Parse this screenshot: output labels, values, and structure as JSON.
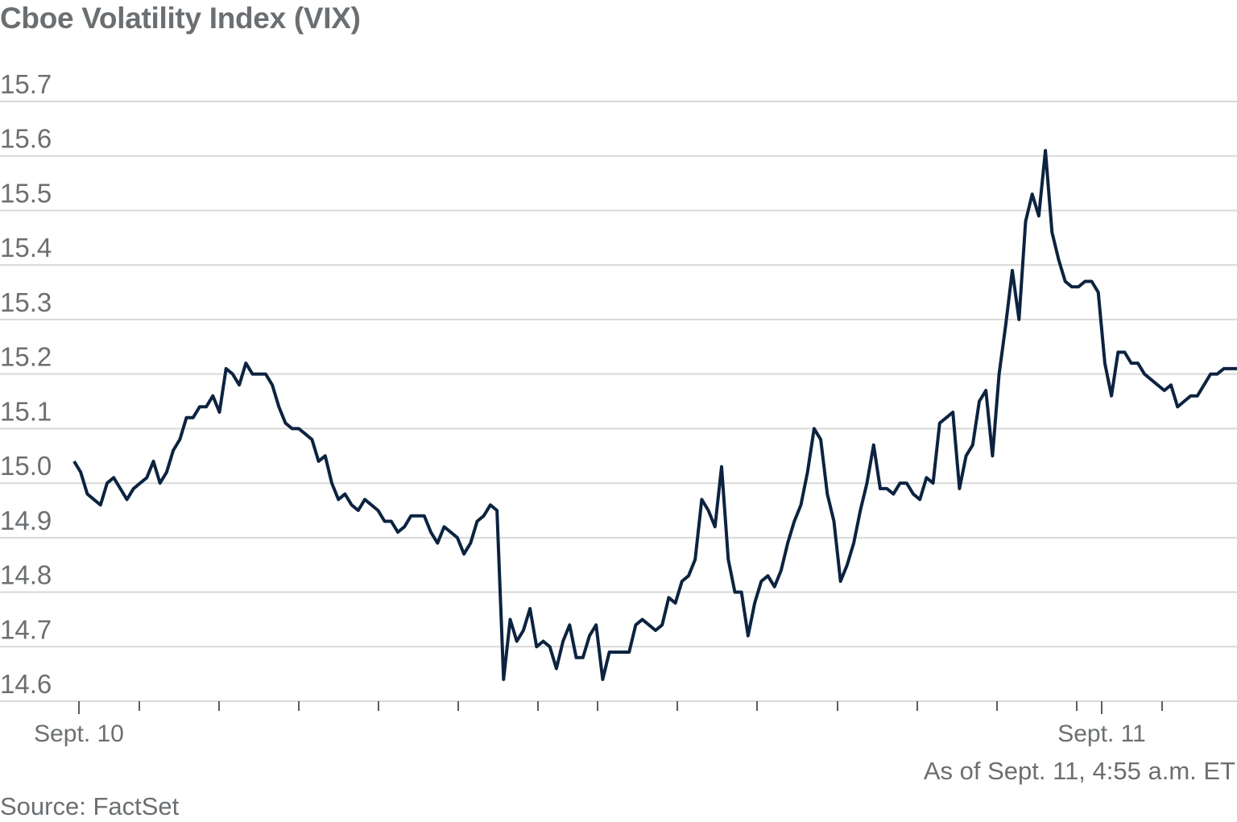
{
  "chart_data": {
    "type": "line",
    "title": "Cboe Volatility Index (VIX)",
    "xlabel": "",
    "ylabel": "",
    "ylim": [
      14.6,
      15.7
    ],
    "yticks": [
      "15.7",
      "15.6",
      "15.5",
      "15.4",
      "15.3",
      "15.2",
      "15.1",
      "15.0",
      "14.9",
      "14.8",
      "14.7",
      "14.6"
    ],
    "xtick_labels": [
      "Sept. 10",
      "Sept. 11"
    ],
    "grid": true,
    "legend": "none",
    "line_color": "#0c2340",
    "series": [
      {
        "values": [
          15.04,
          15.02,
          14.98,
          14.97,
          14.96,
          15.0,
          15.01,
          14.99,
          14.97,
          14.99,
          15.0,
          15.01,
          15.04,
          15.0,
          15.02,
          15.06,
          15.08,
          15.12,
          15.12,
          15.14,
          15.14,
          15.16,
          15.13,
          15.21,
          15.2,
          15.18,
          15.22,
          15.2,
          15.2,
          15.2,
          15.18,
          15.14,
          15.11,
          15.1,
          15.1,
          15.09,
          15.08,
          15.04,
          15.05,
          15.0,
          14.97,
          14.98,
          14.96,
          14.95,
          14.97,
          14.96,
          14.95,
          14.93,
          14.93,
          14.91,
          14.92,
          14.94,
          14.94,
          14.94,
          14.91,
          14.89,
          14.92,
          14.91,
          14.9,
          14.87,
          14.89,
          14.93,
          14.94,
          14.96,
          14.95,
          14.64,
          14.75,
          14.71,
          14.73,
          14.77,
          14.7,
          14.71,
          14.7,
          14.66,
          14.71,
          14.74,
          14.68,
          14.68,
          14.72,
          14.74,
          14.64,
          14.69,
          14.69,
          14.69,
          14.69,
          14.74,
          14.75,
          14.74,
          14.73,
          14.74,
          14.79,
          14.78,
          14.82,
          14.83,
          14.86,
          14.97,
          14.95,
          14.92,
          15.03,
          14.86,
          14.8,
          14.8,
          14.72,
          14.78,
          14.82,
          14.83,
          14.81,
          14.84,
          14.89,
          14.93,
          14.96,
          15.02,
          15.1,
          15.08,
          14.98,
          14.93,
          14.82,
          14.85,
          14.89,
          14.95,
          15.0,
          15.07,
          14.99,
          14.99,
          14.98,
          15.0,
          15.0,
          14.98,
          14.97,
          15.01,
          15.0,
          15.11,
          15.12,
          15.13,
          14.99,
          15.05,
          15.07,
          15.15,
          15.17,
          15.05,
          15.2,
          15.29,
          15.39,
          15.3,
          15.48,
          15.53,
          15.49,
          15.61,
          15.46,
          15.41,
          15.37,
          15.36,
          15.36,
          15.37,
          15.37,
          15.35,
          15.22,
          15.16,
          15.24,
          15.24,
          15.22,
          15.22,
          15.2,
          15.19,
          15.18,
          15.17,
          15.18,
          15.14,
          15.15,
          15.16,
          15.16,
          15.18,
          15.2,
          15.2,
          15.21,
          15.21,
          15.21
        ]
      }
    ]
  },
  "footer": {
    "as_of": "As of Sept. 11, 4:55 a.m. ET",
    "source": "Source: FactSet"
  }
}
